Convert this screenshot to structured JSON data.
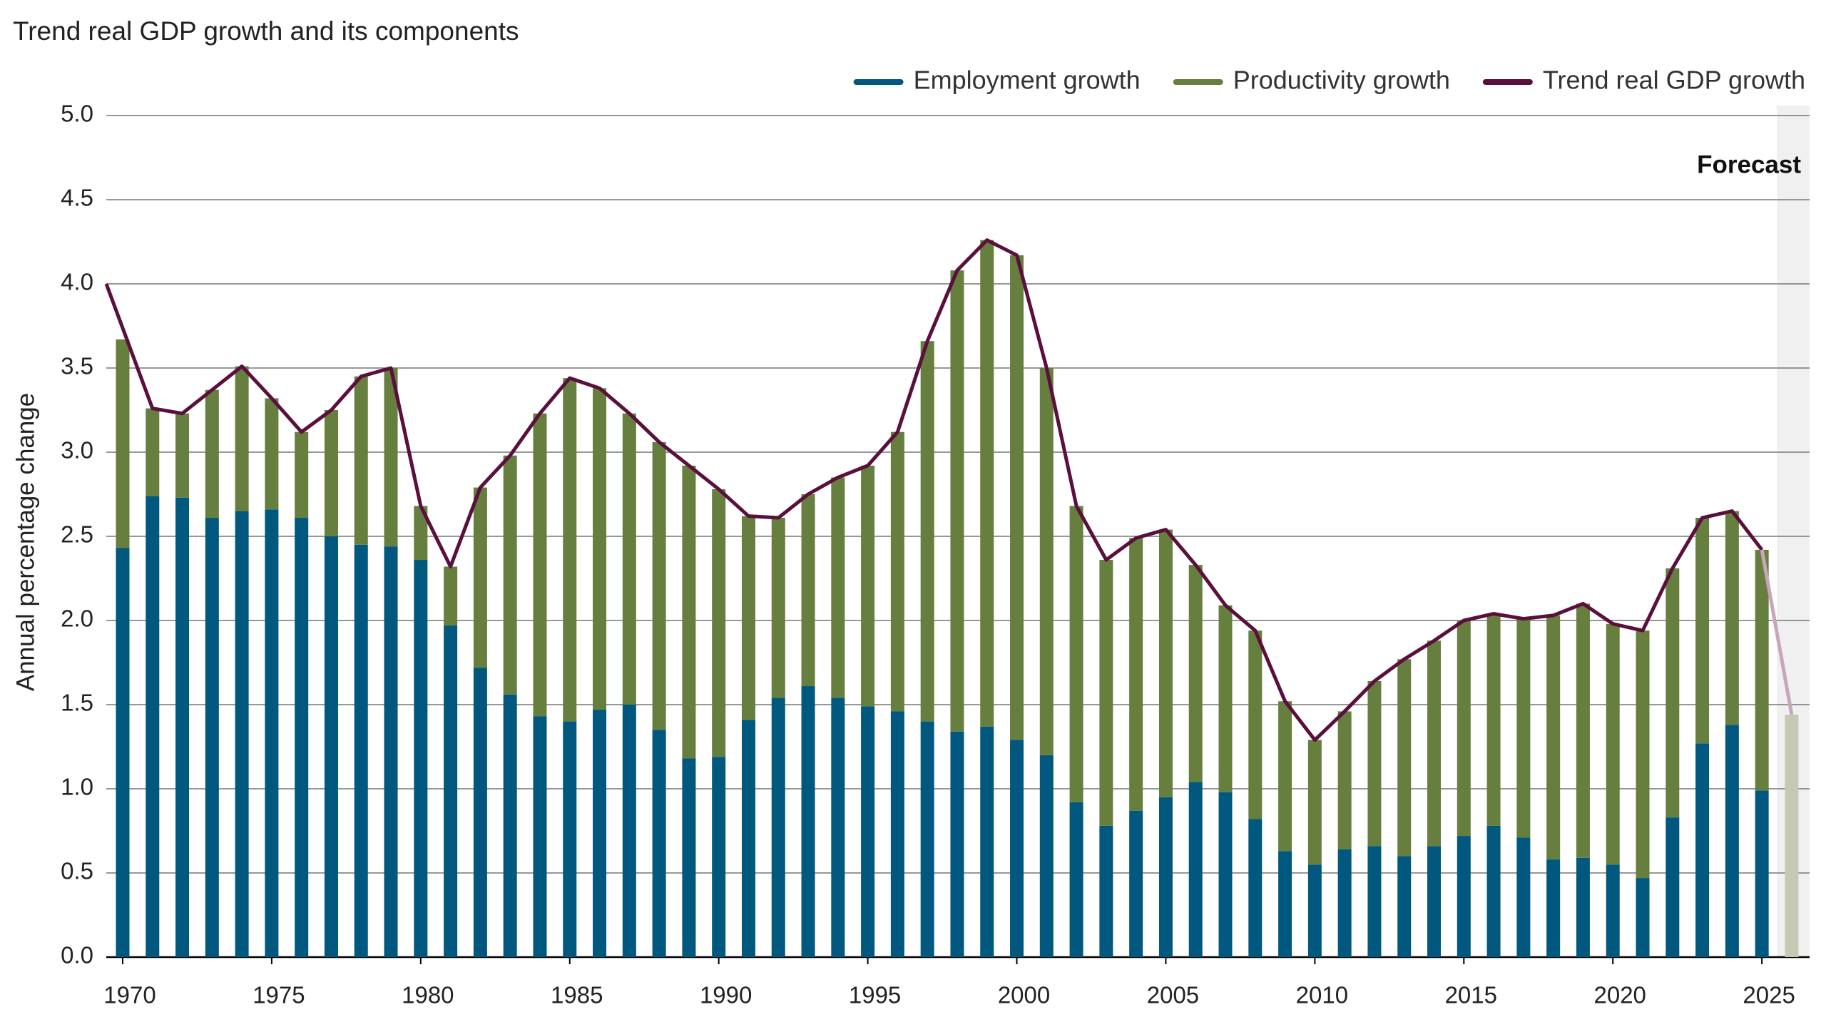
{
  "chart_data": {
    "type": "bar",
    "stacked": true,
    "title": "Trend real GDP growth and its components",
    "y_label": "Annual percentage change",
    "x": [
      1970,
      1971,
      1972,
      1973,
      1974,
      1975,
      1976,
      1977,
      1978,
      1979,
      1980,
      1981,
      1982,
      1983,
      1984,
      1985,
      1986,
      1987,
      1988,
      1989,
      1990,
      1991,
      1992,
      1993,
      1994,
      1995,
      1996,
      1997,
      1998,
      1999,
      2000,
      2001,
      2002,
      2003,
      2004,
      2005,
      2006,
      2007,
      2008,
      2009,
      2010,
      2011,
      2012,
      2013,
      2014,
      2015,
      2016,
      2017,
      2018,
      2019,
      2020,
      2021,
      2022,
      2023,
      2024,
      2025,
      2026
    ],
    "series": [
      {
        "name": "Employment growth",
        "type": "bar",
        "color": "#00587f",
        "forecast_color": "#c3c9b3",
        "values": [
          2.43,
          2.74,
          2.73,
          2.61,
          2.65,
          2.66,
          2.61,
          2.5,
          2.45,
          2.44,
          2.36,
          1.97,
          1.72,
          1.56,
          1.43,
          1.4,
          1.47,
          1.5,
          1.35,
          1.18,
          1.19,
          1.41,
          1.54,
          1.61,
          1.54,
          1.49,
          1.46,
          1.4,
          1.34,
          1.37,
          1.29,
          1.2,
          0.92,
          0.78,
          0.87,
          0.95,
          1.04,
          0.98,
          0.82,
          0.63,
          0.55,
          0.64,
          0.66,
          0.6,
          0.66,
          0.72,
          0.78,
          0.71,
          0.58,
          0.59,
          0.55,
          0.47,
          0.83,
          1.27,
          1.38,
          0.99,
          null
        ]
      },
      {
        "name": "Productivity growth",
        "type": "bar",
        "color": "#667f3e",
        "forecast_color": "#c3c9b3",
        "values": [
          1.24,
          0.52,
          0.5,
          0.76,
          0.86,
          0.66,
          0.51,
          0.75,
          1.0,
          1.06,
          0.32,
          0.35,
          1.07,
          1.42,
          1.8,
          2.04,
          1.91,
          1.73,
          1.71,
          1.74,
          1.59,
          1.21,
          1.07,
          1.14,
          1.31,
          1.43,
          1.66,
          2.26,
          2.74,
          2.89,
          2.88,
          2.3,
          1.76,
          1.58,
          1.62,
          1.59,
          1.29,
          1.11,
          1.12,
          0.89,
          0.74,
          0.82,
          0.98,
          1.17,
          1.22,
          1.28,
          1.26,
          1.3,
          1.45,
          1.51,
          1.43,
          1.47,
          1.48,
          1.34,
          1.27,
          1.43,
          1.44
        ]
      },
      {
        "name": "Trend real GDP growth",
        "type": "line",
        "color": "#5a0f3d",
        "forecast_color": "#c7a6bb",
        "x": [
          1969.45,
          1971,
          1972,
          1973,
          1974,
          1975,
          1976,
          1977,
          1978,
          1979,
          1980,
          1981,
          1982,
          1983,
          1984,
          1985,
          1986,
          1987,
          1988,
          1989,
          1990,
          1991,
          1992,
          1993,
          1994,
          1995,
          1996,
          1997,
          1998,
          1999,
          2000,
          2001,
          2002,
          2003,
          2004,
          2005,
          2006,
          2007,
          2008,
          2009,
          2010,
          2011,
          2012,
          2013,
          2014,
          2015,
          2016,
          2017,
          2018,
          2019,
          2020,
          2021,
          2022,
          2023,
          2024,
          2025,
          2026
        ],
        "values": [
          4.0,
          3.26,
          3.23,
          3.37,
          3.51,
          3.32,
          3.12,
          3.25,
          3.45,
          3.5,
          2.68,
          2.32,
          2.79,
          2.98,
          3.23,
          3.44,
          3.38,
          3.23,
          3.06,
          2.92,
          2.78,
          2.62,
          2.61,
          2.75,
          2.85,
          2.92,
          3.12,
          3.66,
          4.08,
          4.26,
          4.17,
          3.5,
          2.68,
          2.36,
          2.49,
          2.54,
          2.33,
          2.09,
          1.94,
          1.52,
          1.29,
          1.46,
          1.64,
          1.77,
          1.88,
          2.0,
          2.04,
          2.01,
          2.03,
          2.1,
          1.98,
          1.94,
          2.31,
          2.61,
          2.65,
          2.42,
          1.44
        ]
      }
    ],
    "forecast": {
      "label": "Forecast",
      "from": 2025.5
    },
    "xlim": [
      1969.45,
      2026.6
    ],
    "xticks": [
      1970,
      1975,
      1980,
      1985,
      1990,
      1995,
      2000,
      2005,
      2010,
      2015,
      2020,
      2025
    ],
    "ylim": [
      0,
      5
    ],
    "yticks": [
      {
        "value": 0,
        "label": "0.0"
      },
      0.5,
      {
        "value": 1,
        "label": "1.0"
      },
      1.5,
      {
        "value": 2,
        "label": "2.0"
      },
      2.5,
      {
        "value": 3,
        "label": "3.0"
      },
      3.5,
      {
        "value": 4,
        "label": "4.0"
      },
      4.5,
      {
        "value": 5,
        "label": "5.0"
      }
    ],
    "grid": true,
    "legend": "top-right"
  }
}
